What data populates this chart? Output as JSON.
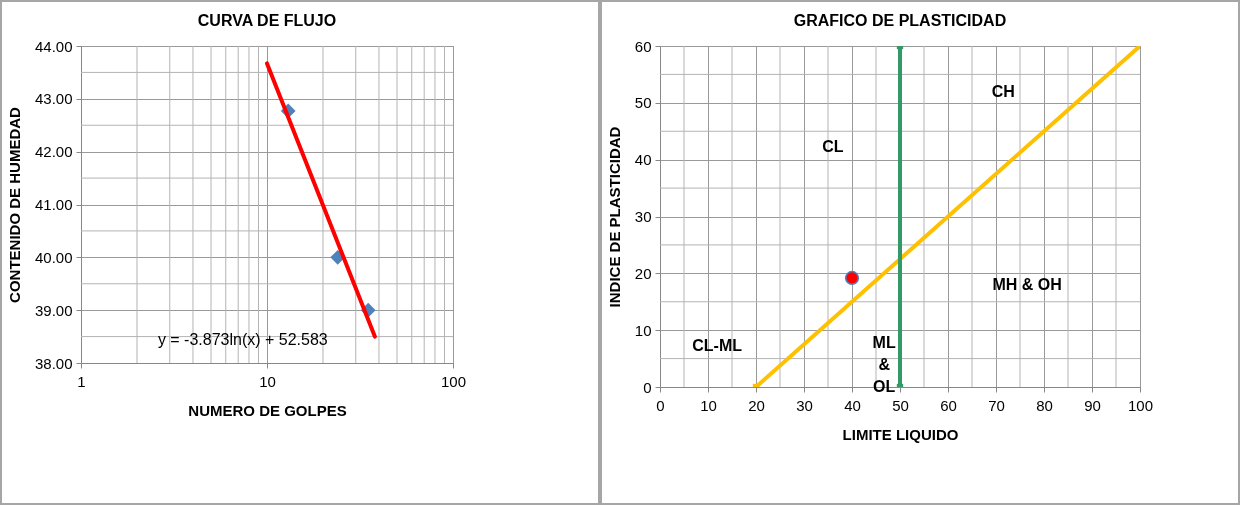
{
  "chart_data": [
    {
      "type": "scatter",
      "title": "CURVA DE FLUJO",
      "xlabel": "NUMERO DE GOLPES",
      "ylabel": "CONTENIDO DE HUMEDAD",
      "log": "x",
      "grid": true,
      "xlim": [
        1,
        100
      ],
      "xticks": [
        1,
        {
          "value": 2,
          "label": null
        },
        {
          "value": 3,
          "label": null
        },
        {
          "value": 4,
          "label": null
        },
        {
          "value": 5,
          "label": null
        },
        {
          "value": 6,
          "label": null
        },
        {
          "value": 7,
          "label": null
        },
        {
          "value": 8,
          "label": null
        },
        {
          "value": 9,
          "label": null
        },
        10,
        {
          "value": 20,
          "label": null
        },
        {
          "value": 30,
          "label": null
        },
        {
          "value": 40,
          "label": null
        },
        {
          "value": 50,
          "label": null
        },
        {
          "value": 60,
          "label": null
        },
        {
          "value": 70,
          "label": null
        },
        {
          "value": 80,
          "label": null
        },
        {
          "value": 90,
          "label": null
        },
        100
      ],
      "ylim": [
        38,
        44
      ],
      "yticks": [
        {
          "value": 38,
          "label": "38.00"
        },
        {
          "value": 38.5,
          "label": null
        },
        {
          "value": 39,
          "label": "39.00"
        },
        {
          "value": 39.5,
          "label": null
        },
        {
          "value": 40,
          "label": "40.00"
        },
        {
          "value": 40.5,
          "label": null
        },
        {
          "value": 41,
          "label": "41.00"
        },
        {
          "value": 41.5,
          "label": null
        },
        {
          "value": 42,
          "label": "42.00"
        },
        {
          "value": 42.5,
          "label": null
        },
        {
          "value": 43,
          "label": "43.00"
        },
        {
          "value": 43.5,
          "label": null
        },
        {
          "value": 44,
          "label": "44.00"
        }
      ],
      "series": [
        {
          "marker": "diamond",
          "color": "#4f81bd",
          "x": [
            13,
            24,
            35
          ],
          "values": [
            42.77,
            40.0,
            39.0
          ]
        },
        {
          "type": "line",
          "marker": "none",
          "color": "#ff0000",
          "x": [
            10,
            38
          ],
          "values": [
            43.67,
            38.5
          ]
        }
      ],
      "annotations": [
        "y = -3.873ln(x) + 52.583"
      ]
    },
    {
      "type": "line",
      "title": "GRAFICO DE PLASTICIDAD",
      "xlabel": "LIMITE LIQUIDO",
      "ylabel": "INDICE DE PLASTICIDAD",
      "grid": true,
      "xlim": [
        0,
        100
      ],
      "xticks": [
        0,
        {
          "value": 5,
          "label": null
        },
        10,
        {
          "value": 15,
          "label": null
        },
        20,
        {
          "value": 25,
          "label": null
        },
        30,
        {
          "value": 35,
          "label": null
        },
        40,
        {
          "value": 45,
          "label": null
        },
        50,
        {
          "value": 55,
          "label": null
        },
        60,
        {
          "value": 65,
          "label": null
        },
        70,
        {
          "value": 75,
          "label": null
        },
        80,
        {
          "value": 85,
          "label": null
        },
        90,
        {
          "value": 95,
          "label": null
        },
        100
      ],
      "ylim": [
        0,
        60
      ],
      "yticks": [
        0,
        {
          "value": 5,
          "label": null
        },
        10,
        {
          "value": 15,
          "label": null
        },
        20,
        {
          "value": 25,
          "label": null
        },
        30,
        {
          "value": 35,
          "label": null
        },
        40,
        {
          "value": 45,
          "label": null
        },
        50,
        {
          "value": 55,
          "label": null
        },
        60
      ],
      "series": [
        {
          "marker": "square",
          "color": "#ffc000",
          "x": [
            20,
            100
          ],
          "values": [
            0,
            60
          ]
        },
        {
          "marker": "square",
          "color": "#339966",
          "x": [
            50,
            50
          ],
          "values": [
            0,
            60
          ]
        },
        {
          "type": "scatter",
          "marker": "circle",
          "color": "#ff0000",
          "x": [
            40
          ],
          "values": [
            19.2
          ]
        }
      ],
      "annotations": [
        "CH",
        "CL",
        "MH & OH",
        "ML & OL",
        "CL-ML"
      ]
    }
  ]
}
